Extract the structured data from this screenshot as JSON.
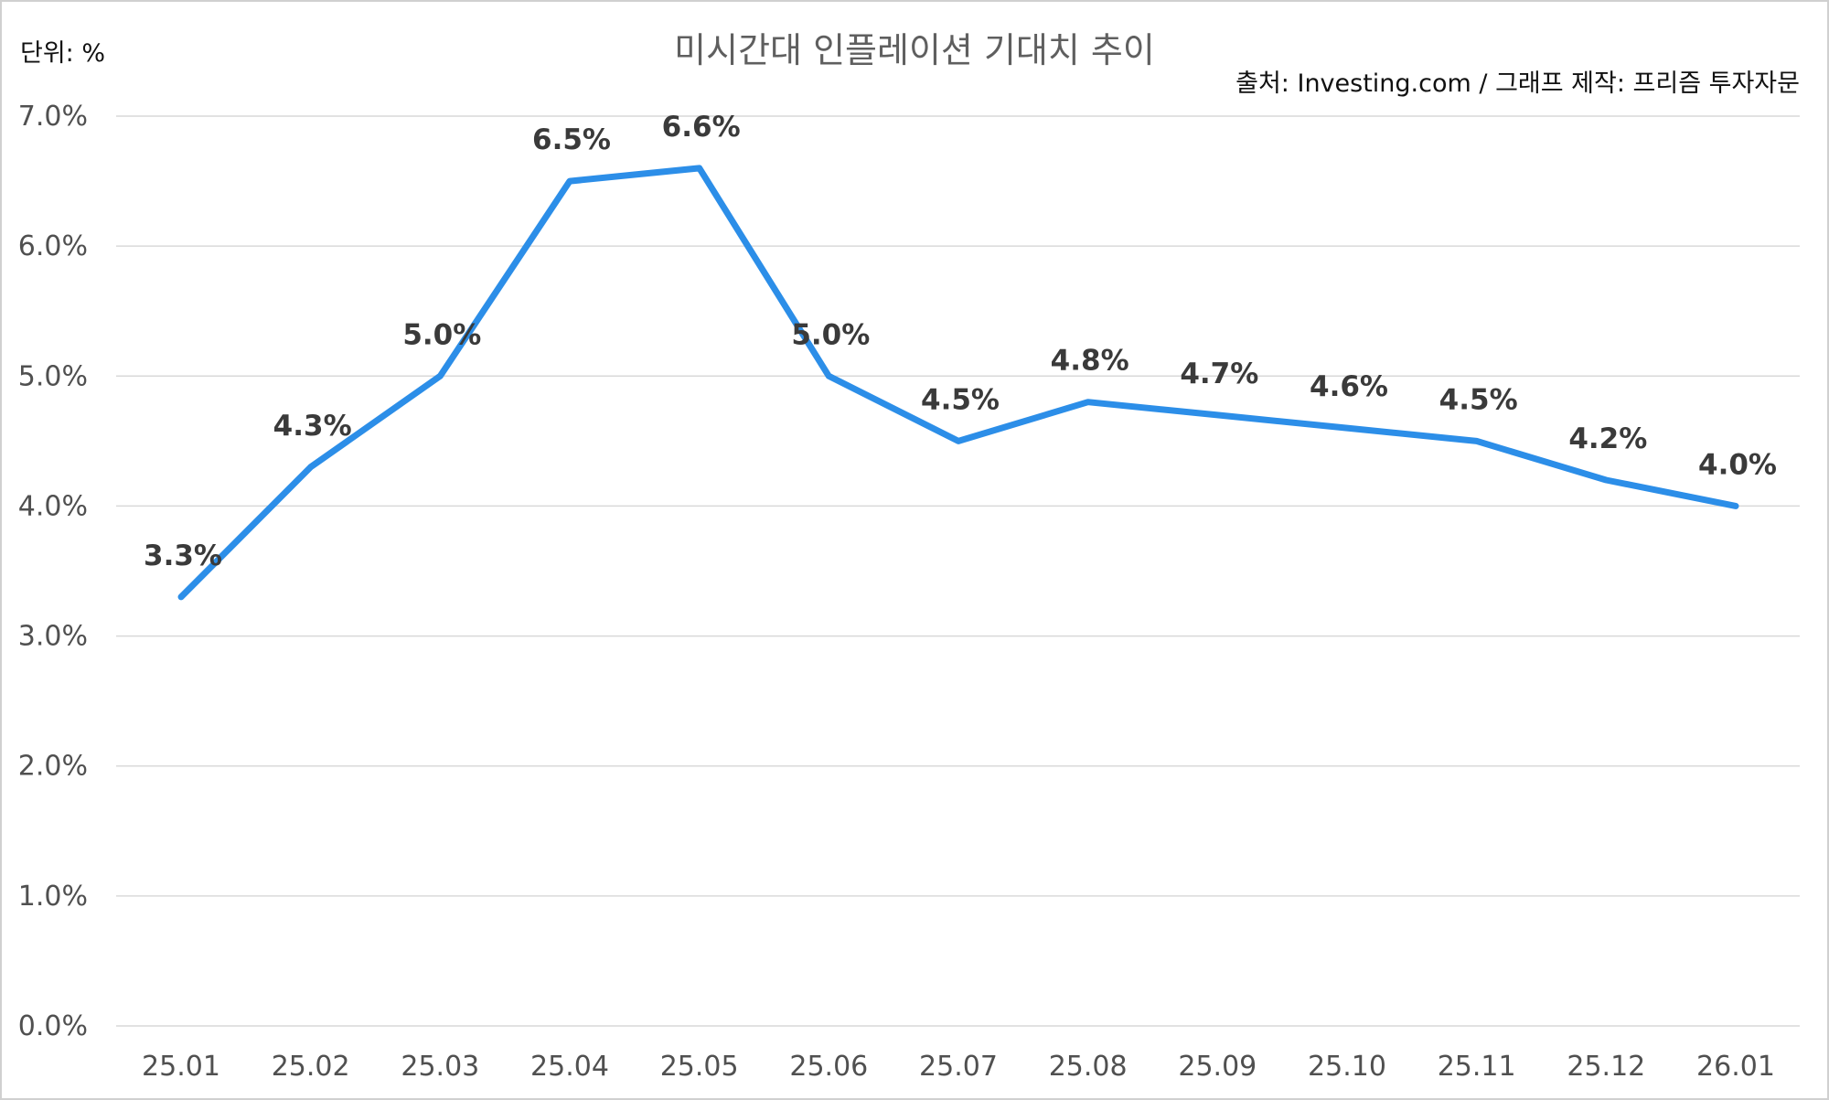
{
  "chart_data": {
    "type": "line",
    "title": "미시간대 인플레이션 기대치 추이",
    "unit_label": "단위: %",
    "source": "출처: Investing.com / 그래프 제작: 프리즘 투자자문",
    "categories": [
      "25.01",
      "25.02",
      "25.03",
      "25.04",
      "25.05",
      "25.06",
      "25.07",
      "25.08",
      "25.09",
      "25.10",
      "25.11",
      "25.12",
      "26.01"
    ],
    "series": [
      {
        "values": [
          3.3,
          4.3,
          5.0,
          6.5,
          6.6,
          5.0,
          4.5,
          4.8,
          4.7,
          4.6,
          4.5,
          4.2,
          4.0
        ],
        "data_labels": [
          "3.3%",
          "4.3%",
          "5.0%",
          "6.5%",
          "6.6%",
          "5.0%",
          "4.5%",
          "4.8%",
          "4.7%",
          "4.6%",
          "4.5%",
          "4.2%",
          "4.0%"
        ],
        "color": "#2c8ee8"
      }
    ],
    "ylim": [
      0,
      7
    ],
    "yticks": [
      0,
      1,
      2,
      3,
      4,
      5,
      6,
      7
    ],
    "ytick_labels": [
      "0.0%",
      "1.0%",
      "2.0%",
      "3.0%",
      "4.0%",
      "5.0%",
      "6.0%",
      "7.0%"
    ],
    "grid": true,
    "legend": "none",
    "xlabel": "",
    "ylabel": ""
  }
}
